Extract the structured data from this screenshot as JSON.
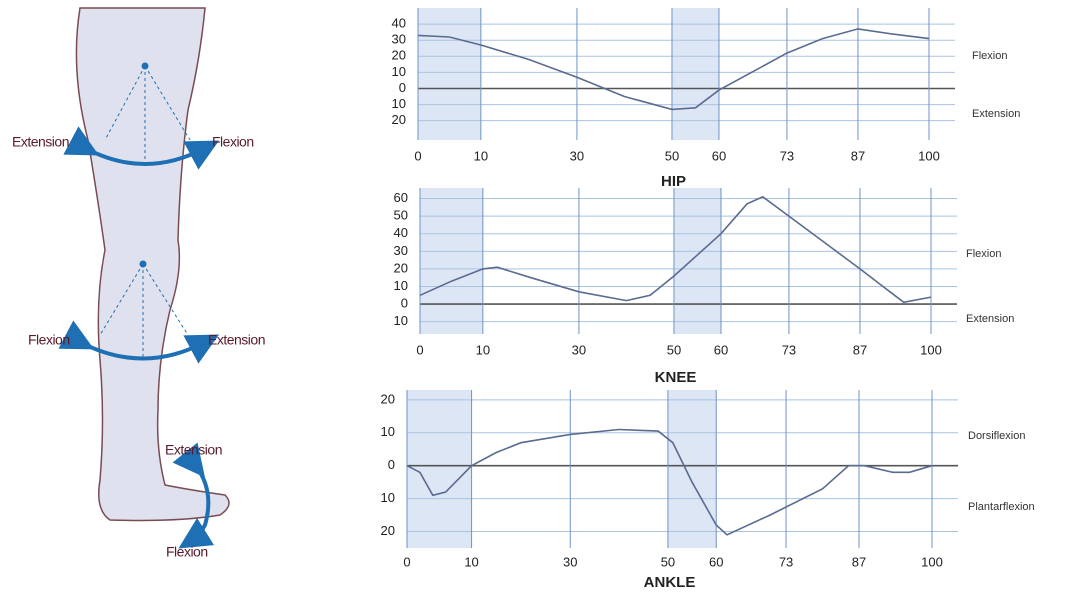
{
  "diagram": {
    "labels": [
      "Extension",
      "Flexion",
      "Flexion",
      "Extension",
      "Extension",
      "Flexion"
    ]
  },
  "chart_data": [
    {
      "type": "line",
      "title": "HIP",
      "color": "#5a6b90",
      "x": [
        0,
        5,
        10,
        20,
        30,
        40,
        50,
        55,
        60,
        73,
        80,
        87,
        93,
        100
      ],
      "values": [
        33,
        32,
        27,
        18,
        7,
        -5,
        -13,
        -12,
        -1,
        22,
        31,
        37,
        34,
        31
      ],
      "xlim": [
        0,
        100
      ],
      "xticks": [
        0,
        10,
        30,
        50,
        60,
        73,
        87,
        100
      ],
      "ylim": [
        -32,
        50
      ],
      "yticks": [
        40,
        30,
        20,
        10,
        0,
        {
          "value": -10,
          "label": "10"
        },
        {
          "value": -20,
          "label": "20"
        }
      ],
      "shaded": [
        [
          0,
          10
        ],
        [
          50,
          60
        ]
      ],
      "grid": true,
      "annotations": [
        "Flexion",
        "Extension"
      ]
    },
    {
      "type": "line",
      "title": "KNEE",
      "color": "#5a6b90",
      "x": [
        0,
        5,
        10,
        13,
        20,
        30,
        40,
        45,
        50,
        60,
        65,
        68,
        73,
        80,
        87,
        95,
        100
      ],
      "values": [
        5,
        13,
        20,
        21,
        15,
        7,
        2,
        5,
        16,
        40,
        57,
        61,
        50,
        35,
        20,
        1,
        4
      ],
      "xlim": [
        0,
        100
      ],
      "xticks": [
        0,
        10,
        30,
        50,
        60,
        73,
        87,
        100
      ],
      "ylim": [
        -17,
        66
      ],
      "yticks": [
        60,
        50,
        40,
        30,
        20,
        10,
        0,
        {
          "value": -10,
          "label": "10"
        }
      ],
      "shaded": [
        [
          0,
          10
        ],
        [
          50,
          60
        ]
      ],
      "grid": true,
      "annotations": [
        "Flexion",
        "Extension"
      ]
    },
    {
      "type": "line",
      "title": "ANKLE",
      "color": "#5a6b90",
      "x": [
        0,
        2,
        4,
        6,
        10,
        15,
        20,
        30,
        40,
        48,
        51,
        55,
        60,
        62,
        70,
        80,
        85,
        88,
        93,
        96,
        100
      ],
      "values": [
        0,
        -2,
        -9,
        -8,
        0,
        4,
        7,
        9.5,
        11,
        10.5,
        7,
        -5,
        -18,
        -21,
        -15,
        -7,
        0,
        0,
        -2,
        -2,
        0
      ],
      "xlim": [
        0,
        100
      ],
      "xticks": [
        0,
        10,
        30,
        50,
        60,
        73,
        87,
        100
      ],
      "ylim": [
        -25,
        23
      ],
      "yticks": [
        20,
        10,
        0,
        {
          "value": -10,
          "label": "10"
        },
        {
          "value": -20,
          "label": "20"
        }
      ],
      "shaded": [
        [
          0,
          10
        ],
        [
          50,
          60
        ]
      ],
      "grid": true,
      "annotations": [
        "Dorsiflexion",
        "Plantarflexion"
      ]
    }
  ]
}
